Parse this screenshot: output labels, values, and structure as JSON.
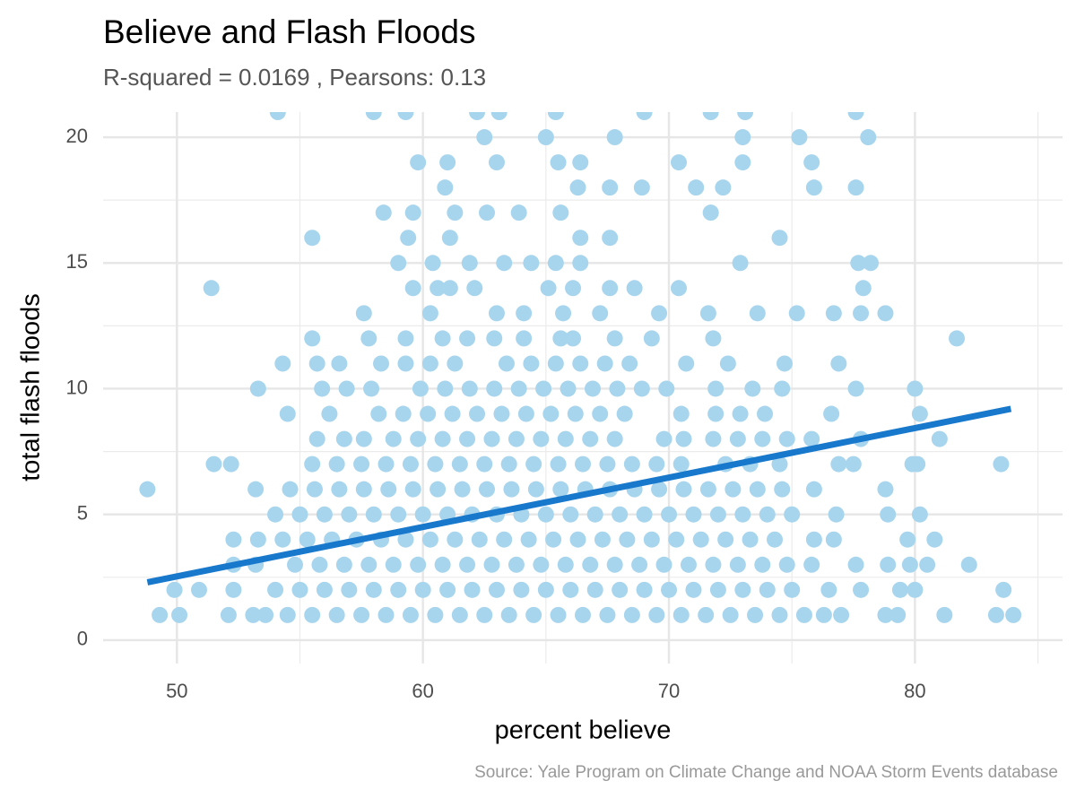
{
  "chart_data": {
    "type": "scatter",
    "title": "Believe and Flash Floods",
    "subtitle": "R-squared =  0.0169 , Pearsons: 0.13",
    "x_label": "percent believe",
    "y_label": "total flash floods",
    "caption": "Source: Yale Program on Climate Change and NOAA Storm Events database",
    "xlim": [
      47,
      86
    ],
    "ylim": [
      -0.93,
      21.0
    ],
    "xticks": [
      50,
      60,
      70,
      80
    ],
    "yticks": [
      0,
      5,
      10,
      15,
      20
    ],
    "x_minor_ticks": [
      55,
      65,
      75,
      85
    ],
    "y_minor_ticks": [
      2.5,
      7.5,
      12.5,
      17.5
    ],
    "grid": true,
    "series": [
      {
        "color": "#a8d5ee",
        "x": [
          49.3,
          50.1,
          52.1,
          53.1,
          53.6,
          54.5,
          55.5,
          56.5,
          57.5,
          58.5,
          59.5,
          60.5,
          61.5,
          62.5,
          63.5,
          64.5,
          65.5,
          66.5,
          67.5,
          68.5,
          69.5,
          70.5,
          71.5,
          72.5,
          73.5,
          74.5,
          75.5,
          76.3,
          77.0,
          78.8,
          79.3,
          81.2,
          83.3,
          84.0,
          49.9,
          50.9,
          52.3,
          54.0,
          55.0,
          56.0,
          57.0,
          58.0,
          59.0,
          60.0,
          61.0,
          62.0,
          63.0,
          64.0,
          65.0,
          66.0,
          67.0,
          68.0,
          69.0,
          70.0,
          71.0,
          72.0,
          73.0,
          74.0,
          75.0,
          76.5,
          77.8,
          79.4,
          80.0,
          83.6,
          52.3,
          53.2,
          54.8,
          55.8,
          56.8,
          57.8,
          58.8,
          59.8,
          60.8,
          61.8,
          62.8,
          63.8,
          64.8,
          65.8,
          66.8,
          67.8,
          68.8,
          69.8,
          70.8,
          71.8,
          72.8,
          73.8,
          74.8,
          75.8,
          77.6,
          78.9,
          79.8,
          80.5,
          82.2,
          52.3,
          53.3,
          54.3,
          55.3,
          56.3,
          57.3,
          58.3,
          59.3,
          60.3,
          61.3,
          62.3,
          63.3,
          64.3,
          65.3,
          66.3,
          67.3,
          68.3,
          69.3,
          70.3,
          71.3,
          72.3,
          73.3,
          74.3,
          75.9,
          76.7,
          79.7,
          80.8,
          54.0,
          55.0,
          56.0,
          57.0,
          58.0,
          59.0,
          60.0,
          61.0,
          62.0,
          63.0,
          64.0,
          65.0,
          66.0,
          67.0,
          68.0,
          69.0,
          70.0,
          71.0,
          72.0,
          73.0,
          74.0,
          75.0,
          76.8,
          78.9,
          80.2,
          48.8,
          53.2,
          54.6,
          55.6,
          56.6,
          57.6,
          58.6,
          59.6,
          60.6,
          61.6,
          62.6,
          63.6,
          64.6,
          65.6,
          66.6,
          67.6,
          68.6,
          69.6,
          70.6,
          71.6,
          72.6,
          73.6,
          74.6,
          75.9,
          78.8,
          51.5,
          52.2,
          55.5,
          56.5,
          57.5,
          58.5,
          59.5,
          60.5,
          61.5,
          62.5,
          63.5,
          64.5,
          65.5,
          66.5,
          67.5,
          68.5,
          69.5,
          70.5,
          72.3,
          73.3,
          74.5,
          76.9,
          77.5,
          79.9,
          80.1,
          83.5,
          55.7,
          56.8,
          57.6,
          58.8,
          59.8,
          60.8,
          61.8,
          62.8,
          63.8,
          64.8,
          65.8,
          66.8,
          67.8,
          69.8,
          70.6,
          71.8,
          72.8,
          73.8,
          74.8,
          75.8,
          77.8,
          81.0,
          54.5,
          56.2,
          58.2,
          59.2,
          60.2,
          61.2,
          62.2,
          63.2,
          64.2,
          65.2,
          66.2,
          67.2,
          68.2,
          70.5,
          71.9,
          72.9,
          73.9,
          76.6,
          80.2,
          53.3,
          55.9,
          56.9,
          57.9,
          59.9,
          60.9,
          61.9,
          62.9,
          63.9,
          64.9,
          65.9,
          66.9,
          67.9,
          68.9,
          69.9,
          71.9,
          73.4,
          74.6,
          77.6,
          80.0,
          54.3,
          55.7,
          56.6,
          58.3,
          59.3,
          60.3,
          61.3,
          63.4,
          64.4,
          65.4,
          66.4,
          67.4,
          68.4,
          70.7,
          72.4,
          74.7,
          76.9,
          55.5,
          57.8,
          59.3,
          60.8,
          61.8,
          62.9,
          64.1,
          65.6,
          66.1,
          67.8,
          69.3,
          71.8,
          81.7,
          57.6,
          60.3,
          63.0,
          64.1,
          65.7,
          67.2,
          69.6,
          71.6,
          73.6,
          75.2,
          76.7,
          77.8,
          78.8,
          51.4,
          59.6,
          60.6,
          61.1,
          62.1,
          65.1,
          66.1,
          67.6,
          68.6,
          70.4,
          77.9,
          59.0,
          60.4,
          61.9,
          63.3,
          64.4,
          65.4,
          66.4,
          72.9,
          77.7,
          78.2,
          55.5,
          59.4,
          61.1,
          66.4,
          67.6,
          74.5,
          58.4,
          59.6,
          61.3,
          62.6,
          63.9,
          65.6,
          71.7,
          60.9,
          66.3,
          67.6,
          68.9,
          71.1,
          72.2,
          75.9,
          77.6,
          59.8,
          61.0,
          63.0,
          65.5,
          66.4,
          70.4,
          73.0,
          75.8,
          62.5,
          65.0,
          67.8,
          73.0,
          75.3,
          78.1,
          54.1,
          58.0,
          59.3,
          62.2,
          63.1,
          65.4,
          69.0,
          71.7,
          73.1,
          77.6
        ],
        "values": [
          1,
          1,
          1,
          1,
          1,
          1,
          1,
          1,
          1,
          1,
          1,
          1,
          1,
          1,
          1,
          1,
          1,
          1,
          1,
          1,
          1,
          1,
          1,
          1,
          1,
          1,
          1,
          1,
          1,
          1,
          1,
          1,
          1,
          1,
          2,
          2,
          2,
          2,
          2,
          2,
          2,
          2,
          2,
          2,
          2,
          2,
          2,
          2,
          2,
          2,
          2,
          2,
          2,
          2,
          2,
          2,
          2,
          2,
          2,
          2,
          2,
          2,
          2,
          2,
          3,
          3,
          3,
          3,
          3,
          3,
          3,
          3,
          3,
          3,
          3,
          3,
          3,
          3,
          3,
          3,
          3,
          3,
          3,
          3,
          3,
          3,
          3,
          3,
          3,
          3,
          3,
          3,
          3,
          4,
          4,
          4,
          4,
          4,
          4,
          4,
          4,
          4,
          4,
          4,
          4,
          4,
          4,
          4,
          4,
          4,
          4,
          4,
          4,
          4,
          4,
          4,
          4,
          4,
          4,
          4,
          5,
          5,
          5,
          5,
          5,
          5,
          5,
          5,
          5,
          5,
          5,
          5,
          5,
          5,
          5,
          5,
          5,
          5,
          5,
          5,
          5,
          5,
          5,
          5,
          5,
          6,
          6,
          6,
          6,
          6,
          6,
          6,
          6,
          6,
          6,
          6,
          6,
          6,
          6,
          6,
          6,
          6,
          6,
          6,
          6,
          6,
          6,
          6,
          6,
          6,
          7,
          7,
          7,
          7,
          7,
          7,
          7,
          7,
          7,
          7,
          7,
          7,
          7,
          7,
          7,
          7,
          7,
          7,
          7,
          7,
          7,
          7,
          7,
          7,
          7,
          7,
          8,
          8,
          8,
          8,
          8,
          8,
          8,
          8,
          8,
          8,
          8,
          8,
          8,
          8,
          8,
          8,
          8,
          8,
          8,
          8,
          8,
          8,
          9,
          9,
          9,
          9,
          9,
          9,
          9,
          9,
          9,
          9,
          9,
          9,
          9,
          9,
          9,
          9,
          9,
          9,
          9,
          10,
          10,
          10,
          10,
          10,
          10,
          10,
          10,
          10,
          10,
          10,
          10,
          10,
          10,
          10,
          10,
          10,
          10,
          10,
          10,
          11,
          11,
          11,
          11,
          11,
          11,
          11,
          11,
          11,
          11,
          11,
          11,
          11,
          11,
          11,
          11,
          11,
          12,
          12,
          12,
          12,
          12,
          12,
          12,
          12,
          12,
          12,
          12,
          12,
          12,
          13,
          13,
          13,
          13,
          13,
          13,
          13,
          13,
          13,
          13,
          13,
          13,
          13,
          14,
          14,
          14,
          14,
          14,
          14,
          14,
          14,
          14,
          14,
          14,
          15,
          15,
          15,
          15,
          15,
          15,
          15,
          15,
          15,
          15,
          16,
          16,
          16,
          16,
          16,
          16,
          17,
          17,
          17,
          17,
          17,
          17,
          17,
          18,
          18,
          18,
          18,
          18,
          18,
          18,
          18,
          19,
          19,
          19,
          19,
          19,
          19,
          19,
          19,
          20,
          20,
          20,
          20,
          20,
          20,
          21,
          21,
          21,
          21,
          21,
          21,
          21,
          21,
          21,
          21
        ]
      }
    ],
    "fit_line": {
      "color": "#1878cc",
      "x": [
        48.8,
        83.9
      ],
      "values": [
        2.3,
        9.2
      ]
    }
  }
}
